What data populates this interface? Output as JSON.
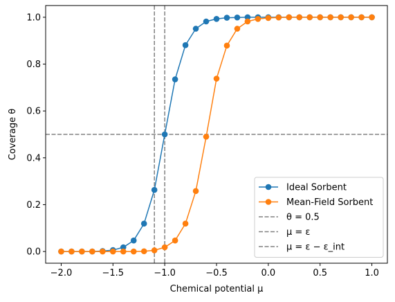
{
  "chart_data": {
    "type": "line",
    "title": "",
    "xlabel": "Chemical potential μ",
    "ylabel": "Coverage θ",
    "xlim": [
      -2.15,
      1.15
    ],
    "ylim": [
      -0.05,
      1.05
    ],
    "x_ticks": [
      -2.0,
      -1.5,
      -1.0,
      -0.5,
      0.0,
      0.5,
      1.0
    ],
    "x_tick_labels": [
      "−2.0",
      "−1.5",
      "−1.0",
      "−0.5",
      "0.0",
      "0.5",
      "1.0"
    ],
    "y_ticks": [
      0.0,
      0.2,
      0.4,
      0.6,
      0.8,
      1.0
    ],
    "y_tick_labels": [
      "0.0",
      "0.2",
      "0.4",
      "0.6",
      "0.8",
      "1.0"
    ],
    "grid": false,
    "legend_position": "lower right",
    "x": [
      -2.0,
      -1.9,
      -1.8,
      -1.7,
      -1.6,
      -1.5,
      -1.4,
      -1.3,
      -1.2,
      -1.1,
      -1.0,
      -0.9,
      -0.8,
      -0.7,
      -0.6,
      -0.5,
      -0.4,
      -0.3,
      -0.2,
      -0.1,
      0.0,
      0.1,
      0.2,
      0.3,
      0.4,
      0.5,
      0.6,
      0.7,
      0.8,
      0.9,
      1.0
    ],
    "series": [
      {
        "name": "Ideal Sorbent",
        "color": "#1f77b4",
        "marker": "circle",
        "values": [
          0.0,
          0.0,
          0.0,
          0.0,
          0.002,
          0.006,
          0.018,
          0.047,
          0.119,
          0.263,
          0.5,
          0.735,
          0.881,
          0.951,
          0.982,
          0.993,
          0.998,
          0.999,
          1.0,
          1.0,
          1.0,
          1.0,
          1.0,
          1.0,
          1.0,
          1.0,
          1.0,
          1.0,
          1.0,
          1.0,
          1.0
        ]
      },
      {
        "name": "Mean-Field Sorbent",
        "color": "#ff7f0e",
        "marker": "circle",
        "values": [
          0.0,
          0.0,
          0.0,
          0.0,
          0.0,
          0.0,
          0.0,
          0.0,
          0.001,
          0.005,
          0.018,
          0.047,
          0.119,
          0.258,
          0.49,
          0.738,
          0.879,
          0.951,
          0.982,
          0.993,
          0.997,
          0.999,
          1.0,
          1.0,
          1.0,
          1.0,
          1.0,
          1.0,
          1.0,
          1.0,
          1.0
        ]
      }
    ],
    "reference_lines": [
      {
        "name": "θ = 0.5",
        "orientation": "horizontal",
        "value": 0.5,
        "color": "#808080",
        "style": "dashed"
      },
      {
        "name": "μ = ε",
        "orientation": "vertical",
        "value": -1.0,
        "color": "#808080",
        "style": "dashed"
      },
      {
        "name": "μ = ε − ε_int",
        "orientation": "vertical",
        "value": -1.1,
        "color": "#808080",
        "style": "dashed"
      }
    ]
  }
}
